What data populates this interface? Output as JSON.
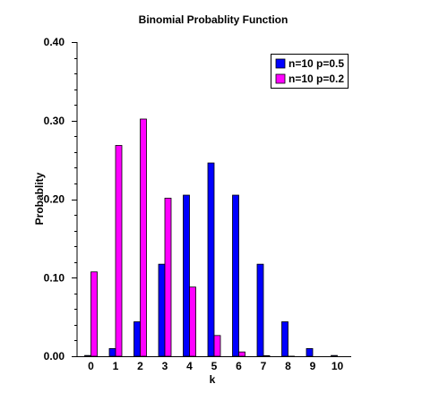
{
  "chart_data": {
    "type": "bar",
    "title": "Binomial Probablity Function",
    "xlabel": "k",
    "ylabel": "Probablity",
    "categories": [
      "0",
      "1",
      "2",
      "3",
      "4",
      "5",
      "6",
      "7",
      "8",
      "9",
      "10"
    ],
    "ylim": [
      0,
      0.4
    ],
    "yticks": [
      "0.00",
      "0.10",
      "0.20",
      "0.30",
      "0.40"
    ],
    "grid": false,
    "legend_position": "top-right",
    "series": [
      {
        "name": "n=10 p=0.5",
        "color": "#0000ff",
        "values": [
          0.001,
          0.0098,
          0.0439,
          0.1172,
          0.2051,
          0.2461,
          0.2051,
          0.1172,
          0.0439,
          0.0098,
          0.001
        ]
      },
      {
        "name": "n=10 p=0.2",
        "color": "#ff00ff",
        "values": [
          0.1074,
          0.2684,
          0.302,
          0.2013,
          0.0881,
          0.0264,
          0.0055,
          0.0008,
          0.0001,
          0.0,
          0.0
        ]
      }
    ]
  }
}
